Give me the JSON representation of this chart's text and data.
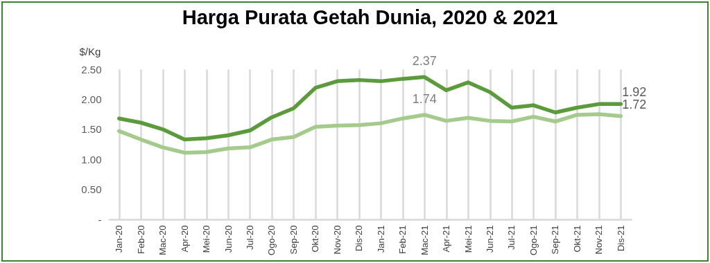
{
  "chart_data": {
    "type": "line",
    "title": "Harga Purata Getah Dunia, 2020 & 2021",
    "ylabel": "$/Kg",
    "categories": [
      "Jan-20",
      "Feb-20",
      "Mac-20",
      "Apr-20",
      "Mei-20",
      "Jun-20",
      "Jul-20",
      "Ogo-20",
      "Sep-20",
      "Okt-20",
      "Nov-20",
      "Dis-20",
      "Jan-21",
      "Feb-21",
      "Mac-21",
      "Apr-21",
      "Mei-21",
      "Jun-21",
      "Jul-21",
      "Ogo-21",
      "Sep-21",
      "Okt-21",
      "Nov-21",
      "Dis-21"
    ],
    "series": [
      {
        "color": "#5b9b3b",
        "values": [
          1.68,
          1.61,
          1.5,
          1.33,
          1.35,
          1.4,
          1.48,
          1.7,
          1.85,
          2.19,
          2.3,
          2.32,
          2.3,
          2.34,
          2.37,
          2.15,
          2.28,
          2.12,
          1.86,
          1.9,
          1.78,
          1.86,
          1.92,
          1.92
        ],
        "value_labels": [
          null,
          null,
          null,
          null,
          null,
          null,
          null,
          null,
          null,
          null,
          null,
          null,
          null,
          null,
          "2.37",
          null,
          null,
          null,
          null,
          null,
          null,
          null,
          null,
          "1.92"
        ]
      },
      {
        "color": "#a4ca8c",
        "values": [
          1.47,
          1.33,
          1.2,
          1.11,
          1.12,
          1.18,
          1.2,
          1.33,
          1.37,
          1.54,
          1.56,
          1.57,
          1.6,
          1.68,
          1.74,
          1.64,
          1.69,
          1.64,
          1.63,
          1.71,
          1.63,
          1.74,
          1.75,
          1.72
        ],
        "value_labels": [
          null,
          null,
          null,
          null,
          null,
          null,
          null,
          null,
          null,
          null,
          null,
          null,
          null,
          null,
          "1.74",
          null,
          null,
          null,
          null,
          null,
          null,
          null,
          null,
          "1.72"
        ]
      }
    ],
    "ylim": [
      0,
      2.5
    ],
    "yticks": [
      {
        "value": 0,
        "label": "-"
      },
      {
        "value": 0.5,
        "label": "0.50"
      },
      {
        "value": 1,
        "label": "1.00"
      },
      {
        "value": 1.5,
        "label": "1.50"
      },
      {
        "value": 2,
        "label": "2.00"
      },
      {
        "value": 2.5,
        "label": "2.50"
      }
    ],
    "grid": "x",
    "legend": false,
    "marker": "none",
    "line_style": "solid"
  }
}
